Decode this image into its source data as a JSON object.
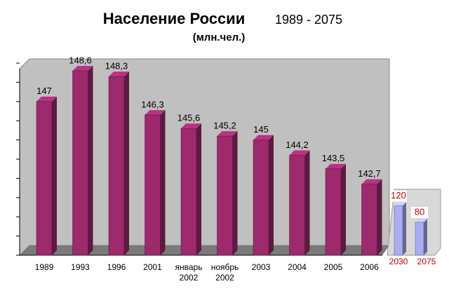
{
  "chart_data": [
    {
      "type": "bar3d",
      "title": "Население России",
      "title_range": "1989 - 2075",
      "subtitle": "(млн.чел.)",
      "categories": [
        "1989",
        "1993",
        "1996",
        "2001",
        "январь 2002",
        "ноябрь 2002",
        "2003",
        "2004",
        "2005",
        "2006"
      ],
      "values": [
        147,
        148.6,
        148.3,
        146.3,
        145.6,
        145.2,
        145,
        144.2,
        143.5,
        142.7
      ],
      "value_labels": [
        "147",
        "148,6",
        "148,3",
        "146,3",
        "145,6",
        "145,2",
        "145",
        "144,2",
        "143,5",
        "142,7"
      ],
      "color": "#9c2a6c",
      "ylim": [
        139,
        149
      ],
      "yticks": [
        139,
        140,
        141,
        142,
        143,
        144,
        145,
        146,
        147,
        148,
        149
      ]
    },
    {
      "type": "bar3d",
      "categories": [
        "2030",
        "2075"
      ],
      "values": [
        120,
        80
      ],
      "color": "#a9aef2",
      "label_color": "#c00000",
      "ylim": [
        0,
        160
      ]
    }
  ]
}
